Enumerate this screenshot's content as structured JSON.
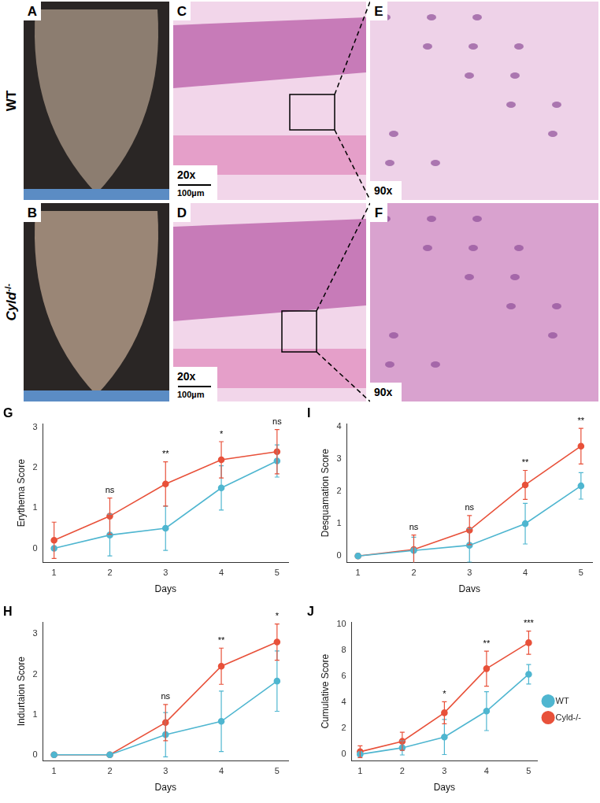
{
  "chart_data": [
    {
      "type": "line",
      "label": "G",
      "x": [
        1,
        2,
        3,
        4,
        5
      ],
      "x_label": "Days",
      "y_label": "Erythema Score",
      "xlim": [
        0.8,
        5.2
      ],
      "xticks": [
        1,
        2,
        3,
        4,
        5
      ],
      "ylim": [
        -0.35,
        3.1
      ],
      "yticks": [
        0,
        1,
        2,
        3
      ],
      "grid": false,
      "series": [
        {
          "name": "WT",
          "color": "#4fb6d0",
          "marker": "circle",
          "line_style": "solid",
          "values": [
            0,
            0.33,
            0.5,
            1.5,
            2.17
          ],
          "errors": [
            0,
            0.52,
            0.55,
            0.55,
            0.4
          ]
        },
        {
          "name": "Cyld-/-",
          "color": "#e8513a",
          "marker": "circle",
          "line_style": "solid",
          "values": [
            0.2,
            0.8,
            1.6,
            2.2,
            2.4
          ],
          "errors": [
            0.45,
            0.45,
            0.55,
            0.45,
            0.55
          ]
        }
      ],
      "annotations": [
        {
          "x": 2,
          "text": "ns"
        },
        {
          "x": 3,
          "text": "**"
        },
        {
          "x": 4,
          "text": "*"
        },
        {
          "x": 5,
          "text": "ns"
        }
      ]
    },
    {
      "type": "line",
      "label": "I",
      "x": [
        1,
        2,
        3,
        4,
        5
      ],
      "x_label": "Davs",
      "y_label": "Desquamation Score",
      "xlim": [
        0.8,
        5.2
      ],
      "xticks": [
        1,
        2,
        3,
        4,
        5
      ],
      "ylim": [
        -0.2,
        4.1
      ],
      "yticks": [
        0,
        1,
        2,
        3,
        4
      ],
      "grid": false,
      "series": [
        {
          "name": "WT",
          "color": "#4fb6d0",
          "marker": "circle",
          "line_style": "solid",
          "values": [
            0,
            0.17,
            0.33,
            1.0,
            2.17
          ],
          "errors": [
            0,
            0.41,
            0.52,
            0.63,
            0.41
          ]
        },
        {
          "name": "Cyld-/-",
          "color": "#e8513a",
          "marker": "circle",
          "line_style": "solid",
          "values": [
            0,
            0.2,
            0.8,
            2.2,
            3.4
          ],
          "errors": [
            0,
            0.45,
            0.45,
            0.45,
            0.55
          ]
        }
      ],
      "annotations": [
        {
          "x": 2,
          "text": "ns"
        },
        {
          "x": 3,
          "text": "ns"
        },
        {
          "x": 4,
          "text": "**"
        },
        {
          "x": 5,
          "text": "**"
        }
      ]
    },
    {
      "type": "line",
      "label": "H",
      "x": [
        1,
        2,
        3,
        4,
        5
      ],
      "x_label": "Days",
      "y_label": "Indurtaion Score",
      "xlim": [
        0.8,
        5.2
      ],
      "xticks": [
        1,
        2,
        3,
        4,
        5
      ],
      "ylim": [
        -0.15,
        3.3
      ],
      "yticks": [
        0,
        1,
        2,
        3
      ],
      "grid": false,
      "series": [
        {
          "name": "WT",
          "color": "#4fb6d0",
          "marker": "circle",
          "line_style": "solid",
          "values": [
            0,
            0,
            0.5,
            0.83,
            1.83
          ],
          "errors": [
            0,
            0,
            0.55,
            0.75,
            0.75
          ]
        },
        {
          "name": "Cyld-/-",
          "color": "#e8513a",
          "marker": "circle",
          "line_style": "solid",
          "values": [
            0,
            0,
            0.8,
            2.2,
            2.8
          ],
          "errors": [
            0,
            0,
            0.45,
            0.45,
            0.45
          ]
        }
      ],
      "annotations": [
        {
          "x": 3,
          "text": "ns"
        },
        {
          "x": 4,
          "text": "**"
        },
        {
          "x": 5,
          "text": "*"
        }
      ]
    },
    {
      "type": "line",
      "label": "J",
      "x": [
        1,
        2,
        3,
        4,
        5
      ],
      "x_label": "Days",
      "y_label": "Cumulative Score",
      "xlim": [
        0.8,
        5.2
      ],
      "xticks": [
        1,
        2,
        3,
        4,
        5
      ],
      "ylim": [
        -0.5,
        10.2
      ],
      "yticks": [
        0,
        2,
        4,
        6,
        8,
        10
      ],
      "grid": false,
      "legend": "right",
      "series": [
        {
          "name": "WT",
          "color": "#4fb6d0",
          "marker": "circle",
          "line_style": "solid",
          "values": [
            0,
            0.5,
            1.33,
            3.33,
            6.17
          ],
          "errors": [
            0,
            0.55,
            1.35,
            1.5,
            0.75
          ]
        },
        {
          "name": "Cyld-/-",
          "color": "#e8513a",
          "marker": "circle",
          "line_style": "solid",
          "values": [
            0.2,
            1.0,
            3.2,
            6.6,
            8.6
          ],
          "errors": [
            0.45,
            0.7,
            0.85,
            1.35,
            0.9
          ]
        }
      ],
      "annotations": [
        {
          "x": 3,
          "text": "*"
        },
        {
          "x": 4,
          "text": "**"
        },
        {
          "x": 5,
          "text": "***"
        }
      ]
    }
  ],
  "figure_panels": {
    "rows": [
      {
        "label": "WT",
        "panels": [
          {
            "letter": "A",
            "kind": "photo"
          },
          {
            "letter": "C",
            "kind": "histology",
            "magnification": "20x",
            "scale_bar": "100µm"
          },
          {
            "letter": "E",
            "kind": "histology_zoom",
            "magnification": "90x"
          }
        ]
      },
      {
        "label": "Cyld-/-",
        "panels": [
          {
            "letter": "B",
            "kind": "photo"
          },
          {
            "letter": "D",
            "kind": "histology",
            "magnification": "20x",
            "scale_bar": "100µm"
          },
          {
            "letter": "F",
            "kind": "histology_zoom",
            "magnification": "90x"
          }
        ]
      }
    ]
  }
}
